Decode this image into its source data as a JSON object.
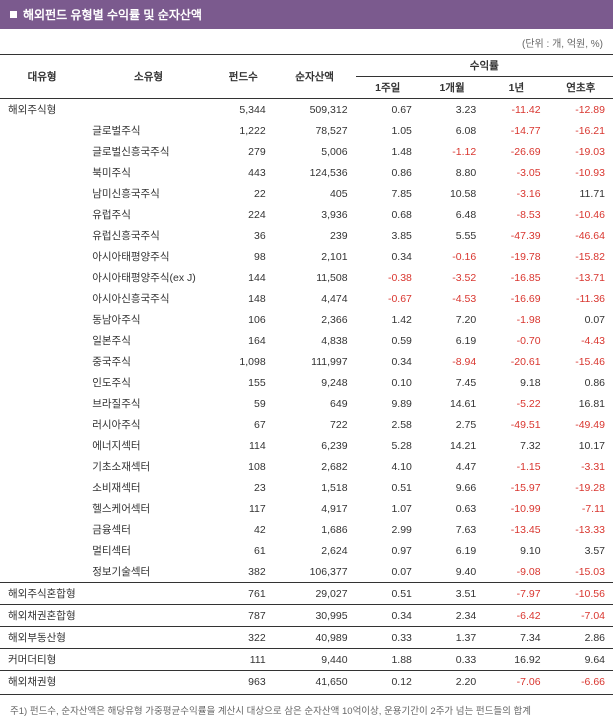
{
  "title": "해외펀드 유형별 수익률 및 순자산액",
  "unit": "(단위 : 개, 억원, %)",
  "colors": {
    "header_bg": "#7b5a8e",
    "negative": "#d9362f"
  },
  "columns": {
    "major": "대유형",
    "minor": "소유형",
    "fund_count": "펀드수",
    "nav": "순자산액",
    "return_group": "수익률",
    "r1w": "1주일",
    "r1m": "1개월",
    "r1y": "1년",
    "rytd": "연초후"
  },
  "groups": [
    {
      "major": "해외주식형",
      "agg": {
        "count": "5,344",
        "nav": "509,312",
        "r1w": "0.67",
        "r1m": "3.23",
        "r1y": "-11.42",
        "rytd": "-12.89"
      },
      "rows": [
        {
          "minor": "글로벌주식",
          "count": "1,222",
          "nav": "78,527",
          "r1w": "1.05",
          "r1m": "6.08",
          "r1y": "-14.77",
          "rytd": "-16.21"
        },
        {
          "minor": "글로벌신흥국주식",
          "count": "279",
          "nav": "5,006",
          "r1w": "1.48",
          "r1m": "-1.12",
          "r1y": "-26.69",
          "rytd": "-19.03"
        },
        {
          "minor": "북미주식",
          "count": "443",
          "nav": "124,536",
          "r1w": "0.86",
          "r1m": "8.80",
          "r1y": "-3.05",
          "rytd": "-10.93"
        },
        {
          "minor": "남미신흥국주식",
          "count": "22",
          "nav": "405",
          "r1w": "7.85",
          "r1m": "10.58",
          "r1y": "-3.16",
          "rytd": "11.71"
        },
        {
          "minor": "유럽주식",
          "count": "224",
          "nav": "3,936",
          "r1w": "0.68",
          "r1m": "6.48",
          "r1y": "-8.53",
          "rytd": "-10.46"
        },
        {
          "minor": "유럽신흥국주식",
          "count": "36",
          "nav": "239",
          "r1w": "3.85",
          "r1m": "5.55",
          "r1y": "-47.39",
          "rytd": "-46.64"
        },
        {
          "minor": "아시아태평양주식",
          "count": "98",
          "nav": "2,101",
          "r1w": "0.34",
          "r1m": "-0.16",
          "r1y": "-19.78",
          "rytd": "-15.82"
        },
        {
          "minor": "아시아태평양주식(ex J)",
          "count": "144",
          "nav": "11,508",
          "r1w": "-0.38",
          "r1m": "-3.52",
          "r1y": "-16.85",
          "rytd": "-13.71"
        },
        {
          "minor": "아시아신흥국주식",
          "count": "148",
          "nav": "4,474",
          "r1w": "-0.67",
          "r1m": "-4.53",
          "r1y": "-16.69",
          "rytd": "-11.36"
        },
        {
          "minor": "동남아주식",
          "count": "106",
          "nav": "2,366",
          "r1w": "1.42",
          "r1m": "7.20",
          "r1y": "-1.98",
          "rytd": "0.07"
        },
        {
          "minor": "일본주식",
          "count": "164",
          "nav": "4,838",
          "r1w": "0.59",
          "r1m": "6.19",
          "r1y": "-0.70",
          "rytd": "-4.43"
        },
        {
          "minor": "중국주식",
          "count": "1,098",
          "nav": "111,997",
          "r1w": "0.34",
          "r1m": "-8.94",
          "r1y": "-20.61",
          "rytd": "-15.46"
        },
        {
          "minor": "인도주식",
          "count": "155",
          "nav": "9,248",
          "r1w": "0.10",
          "r1m": "7.45",
          "r1y": "9.18",
          "rytd": "0.86"
        },
        {
          "minor": "브라질주식",
          "count": "59",
          "nav": "649",
          "r1w": "9.89",
          "r1m": "14.61",
          "r1y": "-5.22",
          "rytd": "16.81"
        },
        {
          "minor": "러시아주식",
          "count": "67",
          "nav": "722",
          "r1w": "2.58",
          "r1m": "2.75",
          "r1y": "-49.51",
          "rytd": "-49.49"
        },
        {
          "minor": "에너지섹터",
          "count": "114",
          "nav": "6,239",
          "r1w": "5.28",
          "r1m": "14.21",
          "r1y": "7.32",
          "rytd": "10.17"
        },
        {
          "minor": "기초소재섹터",
          "count": "108",
          "nav": "2,682",
          "r1w": "4.10",
          "r1m": "4.47",
          "r1y": "-1.15",
          "rytd": "-3.31"
        },
        {
          "minor": "소비재섹터",
          "count": "23",
          "nav": "1,518",
          "r1w": "0.51",
          "r1m": "9.66",
          "r1y": "-15.97",
          "rytd": "-19.28"
        },
        {
          "minor": "헬스케어섹터",
          "count": "117",
          "nav": "4,917",
          "r1w": "1.07",
          "r1m": "0.63",
          "r1y": "-10.99",
          "rytd": "-7.11"
        },
        {
          "minor": "금융섹터",
          "count": "42",
          "nav": "1,686",
          "r1w": "2.99",
          "r1m": "7.63",
          "r1y": "-13.45",
          "rytd": "-13.33"
        },
        {
          "minor": "멀티섹터",
          "count": "61",
          "nav": "2,624",
          "r1w": "0.97",
          "r1m": "6.19",
          "r1y": "9.10",
          "rytd": "3.57"
        },
        {
          "minor": "정보기술섹터",
          "count": "382",
          "nav": "106,377",
          "r1w": "0.07",
          "r1m": "9.40",
          "r1y": "-9.08",
          "rytd": "-15.03"
        }
      ]
    },
    {
      "major": "해외주식혼합형",
      "agg": {
        "count": "761",
        "nav": "29,027",
        "r1w": "0.51",
        "r1m": "3.51",
        "r1y": "-7.97",
        "rytd": "-10.56"
      },
      "rows": []
    },
    {
      "major": "해외채권혼합형",
      "agg": {
        "count": "787",
        "nav": "30,995",
        "r1w": "0.34",
        "r1m": "2.34",
        "r1y": "-6.42",
        "rytd": "-7.04"
      },
      "rows": []
    },
    {
      "major": "해외부동산형",
      "agg": {
        "count": "322",
        "nav": "40,989",
        "r1w": "0.33",
        "r1m": "1.37",
        "r1y": "7.34",
        "rytd": "2.86"
      },
      "rows": []
    },
    {
      "major": "커머더티형",
      "agg": {
        "count": "111",
        "nav": "9,440",
        "r1w": "1.88",
        "r1m": "0.33",
        "r1y": "16.92",
        "rytd": "9.64"
      },
      "rows": []
    },
    {
      "major": "해외채권형",
      "agg": {
        "count": "963",
        "nav": "41,650",
        "r1w": "0.12",
        "r1m": "2.20",
        "r1y": "-7.06",
        "rytd": "-6.66"
      },
      "rows": []
    }
  ],
  "footnote": "주1) 펀드수, 순자산액은 해당유형 가중평균수익률을 계산시 대상으로 삼은 순자산액 10억이상, 운용기간이 2주가 넘는 펀드들의 합계"
}
